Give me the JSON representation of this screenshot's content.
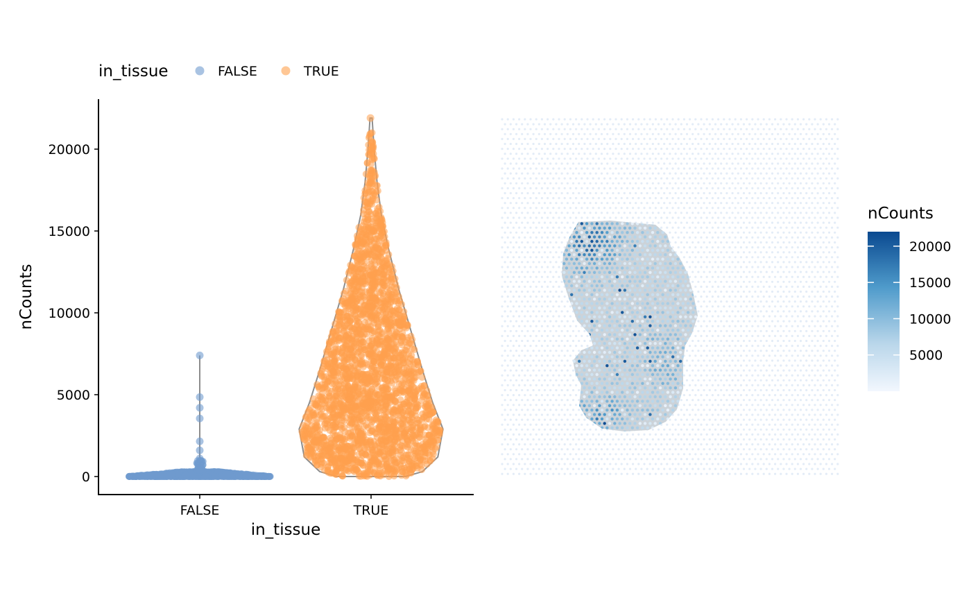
{
  "chart_data": [
    {
      "type": "violin",
      "xlabel": "in_tissue",
      "ylabel": "nCounts",
      "categories": [
        "FALSE",
        "TRUE"
      ],
      "ylim": [
        -1100,
        23000
      ],
      "yticks": [
        0,
        5000,
        10000,
        15000,
        20000
      ],
      "legend": {
        "title": "in_tissue",
        "placement": "top",
        "entries": [
          {
            "label": "FALSE",
            "color": "#6f9bcf"
          },
          {
            "label": "TRUE",
            "color": "#ffa14f"
          }
        ]
      },
      "series": [
        {
          "name": "FALSE",
          "color": "#6f9bcf",
          "min": 0,
          "max": 7400,
          "bulk_max": 300,
          "outliers": [
            7400,
            4850,
            4200,
            3550,
            2150,
            1600,
            1100,
            900,
            700
          ]
        },
        {
          "name": "TRUE",
          "color": "#ffa14f",
          "min": 0,
          "max": 21900,
          "density_profile": [
            {
              "y": 0,
              "halfwidth": 0.2
            },
            {
              "y": 300,
              "halfwidth": 0.3
            },
            {
              "y": 1200,
              "halfwidth": 0.39
            },
            {
              "y": 2900,
              "halfwidth": 0.42
            },
            {
              "y": 4500,
              "halfwidth": 0.36
            },
            {
              "y": 6500,
              "halfwidth": 0.3
            },
            {
              "y": 9000,
              "halfwidth": 0.23
            },
            {
              "y": 11500,
              "halfwidth": 0.16
            },
            {
              "y": 14000,
              "halfwidth": 0.1
            },
            {
              "y": 16000,
              "halfwidth": 0.06
            },
            {
              "y": 18000,
              "halfwidth": 0.035
            },
            {
              "y": 20000,
              "halfwidth": 0.018
            },
            {
              "y": 21900,
              "halfwidth": 0.006
            }
          ],
          "top_points": [
            21900,
            20400,
            19800,
            18700,
            18500,
            17900,
            17400
          ]
        }
      ]
    },
    {
      "type": "spatial",
      "legend": {
        "title": "nCounts",
        "placement": "right",
        "ticks": [
          5000,
          10000,
          15000,
          20000
        ],
        "range": [
          0,
          22000
        ],
        "gradient": [
          "#f2f7fe",
          "#b9d6ea",
          "#4f9bcb",
          "#0a4990"
        ]
      }
    }
  ]
}
